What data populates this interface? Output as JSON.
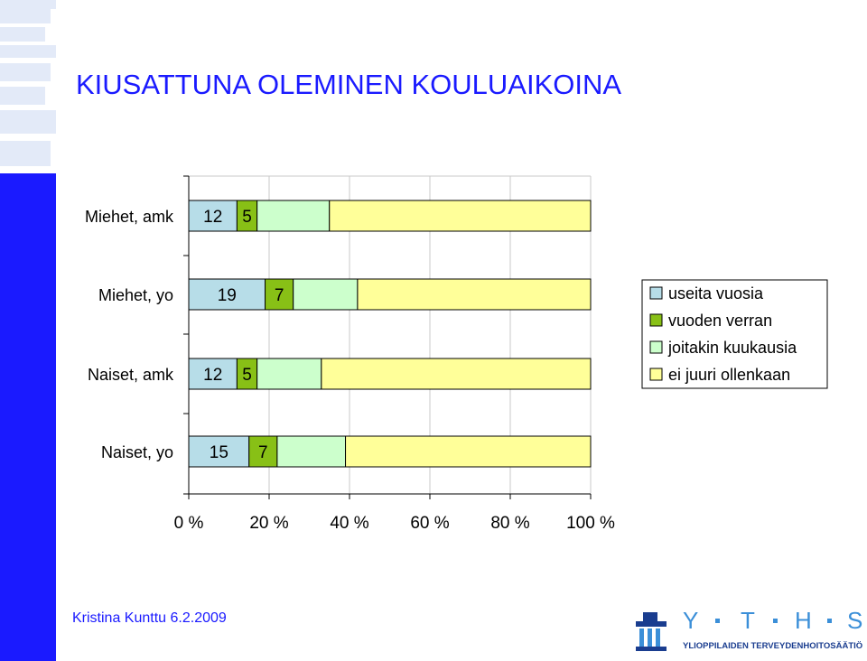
{
  "title": "KIUSATTUNA OLEMINEN KOULUAIKOINA",
  "footer": {
    "author_date": "Kristina Kunttu 6.2.2009"
  },
  "logo": {
    "letters": [
      "Y",
      "T",
      "H",
      "S"
    ],
    "caption": "YLIOPPILAIDEN TERVEYDENHOITOSÄÄTIÖ",
    "icon": "building-icon"
  },
  "colors": {
    "title": "#1a1aff",
    "band_dark": "#1a1aff",
    "band_light": "#e3eaf8",
    "logo_dark": "#1a3d8f",
    "logo_light": "#3b8fd8"
  },
  "chart_data": {
    "type": "bar",
    "orientation": "horizontal",
    "stacked": true,
    "percent_stacked": true,
    "categories": [
      "Miehet, amk",
      "Miehet, yo",
      "Naiset, amk",
      "Naiset, yo"
    ],
    "series": [
      {
        "name": "useita vuosia",
        "color": "#b7dde8",
        "values": [
          12,
          19,
          12,
          15
        ],
        "labels": [
          "12",
          "19",
          "12",
          "15"
        ]
      },
      {
        "name": "vuoden verran",
        "color": "#88c016",
        "values": [
          5,
          7,
          5,
          7
        ],
        "labels": [
          "5",
          "7",
          "5",
          "7"
        ]
      },
      {
        "name": "joitakin kuukausia",
        "color": "#ccffcc",
        "values": [
          18,
          16,
          16,
          17
        ]
      },
      {
        "name": "ei juuri ollenkaan",
        "color": "#ffff99",
        "values": [
          65,
          58,
          67,
          61
        ]
      }
    ],
    "x_ticks": [
      "0 %",
      "20 %",
      "40 %",
      "60 %",
      "80 %",
      "100 %"
    ],
    "xlim": [
      0,
      100
    ],
    "grid": "vertical",
    "legend_position": "right"
  }
}
